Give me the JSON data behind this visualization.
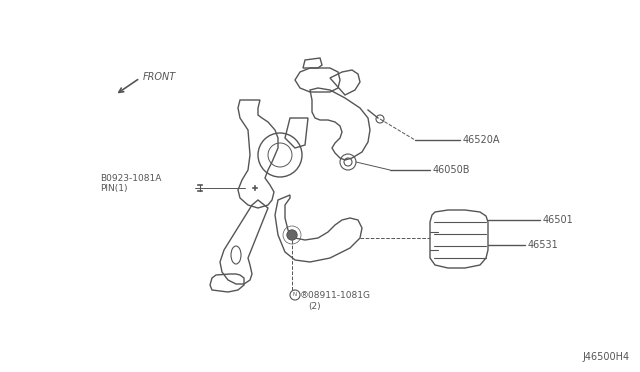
{
  "bg_color": "#ffffff",
  "line_color": "#555555",
  "diagram_code": "J46500H4",
  "labels": {
    "46520A": "46520A",
    "46050B": "46050B",
    "46501": "46501",
    "46531": "46531",
    "B0923": "B0923-1081A",
    "PIN1": "PIN(1)",
    "N08911": "®08911-1081G",
    "qty2": "(2)",
    "FRONT": "FRONT"
  }
}
